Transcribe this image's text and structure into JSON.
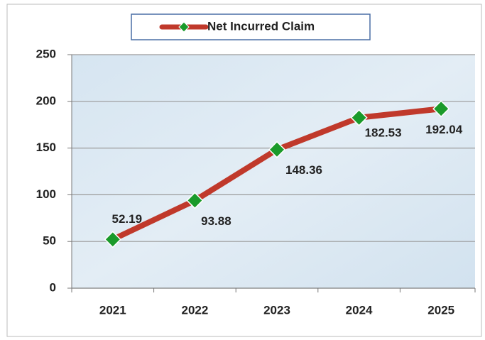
{
  "chart_data": {
    "type": "line",
    "categories": [
      "2021",
      "2022",
      "2023",
      "2024",
      "2025"
    ],
    "series": [
      {
        "name": "Net Incurred Claim",
        "color": "#c0392b",
        "marker_color": "#1a9a2a",
        "values": [
          52.19,
          93.88,
          148.36,
          182.53,
          192.04
        ]
      }
    ],
    "ylim": [
      0,
      250
    ],
    "yticks": [
      0,
      50,
      100,
      150,
      200,
      250
    ],
    "grid": true,
    "legend": "top"
  }
}
